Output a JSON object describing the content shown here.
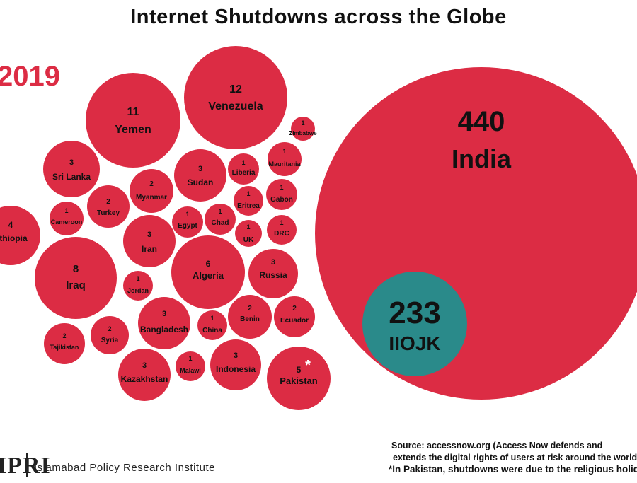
{
  "title": "Internet Shutdowns across the Globe",
  "year_label": "2019",
  "colors": {
    "bubble": "#dc2c44",
    "highlight": "#2a8a8a",
    "text": "#111111",
    "highlight_text": "#ffffff"
  },
  "chart_data": {
    "type": "bubble",
    "title": "Internet Shutdowns across the Globe",
    "series": [
      {
        "country": "India",
        "value": 440
      },
      {
        "country": "IIOJK",
        "value": 233
      },
      {
        "country": "Venezuela",
        "value": 12
      },
      {
        "country": "Yemen",
        "value": 11
      },
      {
        "country": "Iraq",
        "value": 8
      },
      {
        "country": "Algeria",
        "value": 6
      },
      {
        "country": "Pakistan",
        "value": 5,
        "marker": "*"
      },
      {
        "country": "Ethiopia",
        "value": 4
      },
      {
        "country": "Sri Lanka",
        "value": 3
      },
      {
        "country": "Sudan",
        "value": 3
      },
      {
        "country": "Iran",
        "value": 3
      },
      {
        "country": "Russia",
        "value": 3
      },
      {
        "country": "Bangladesh",
        "value": 3
      },
      {
        "country": "Kazakhstan",
        "value": 3
      },
      {
        "country": "Indonesia",
        "value": 3
      },
      {
        "country": "Myanmar",
        "value": 2
      },
      {
        "country": "Turkey",
        "value": 2
      },
      {
        "country": "Benin",
        "value": 2
      },
      {
        "country": "Ecuador",
        "value": 2
      },
      {
        "country": "Tajikistan",
        "value": 2
      },
      {
        "country": "Syria",
        "value": 2
      },
      {
        "country": "Zimbabwe",
        "value": 1
      },
      {
        "country": "Liberia",
        "value": 1
      },
      {
        "country": "Mauritania",
        "value": 1
      },
      {
        "country": "Cameroon",
        "value": 1
      },
      {
        "country": "Egypt",
        "value": 1
      },
      {
        "country": "Chad",
        "value": 1
      },
      {
        "country": "Eritrea",
        "value": 1
      },
      {
        "country": "Gabon",
        "value": 1
      },
      {
        "country": "UK",
        "value": 1
      },
      {
        "country": "DRC",
        "value": 1
      },
      {
        "country": "Jordan",
        "value": 1
      },
      {
        "country": "China",
        "value": 1
      },
      {
        "country": "Malawi",
        "value": 1
      }
    ]
  },
  "footer": {
    "logo": "IPRI",
    "institute": "Islamabad Policy Research Institute",
    "source_line1": "Source: accessnow.org (Access Now defends and",
    "source_line2": "extends the digital rights of users at risk around the world)",
    "note": "*In Pakistan, shutdowns were due to the religious holidays"
  }
}
